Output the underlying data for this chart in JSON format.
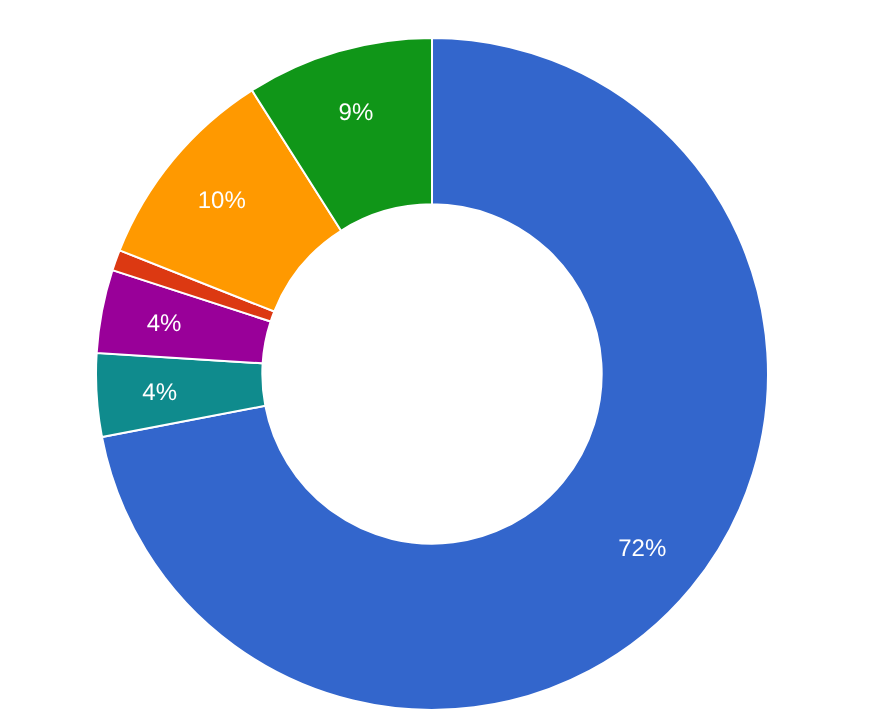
{
  "chart_data": {
    "type": "donut",
    "categories": [
      null,
      null,
      null,
      null,
      null,
      null
    ],
    "values": [
      72,
      4,
      4,
      1,
      10,
      9
    ],
    "colors": [
      "#3366cc",
      "#0f8b8d",
      "#990099",
      "#dc3912",
      "#ff9900",
      "#109618"
    ],
    "value_labels": [
      "72%",
      "4%",
      "4%",
      null,
      "10%",
      "9%"
    ]
  }
}
